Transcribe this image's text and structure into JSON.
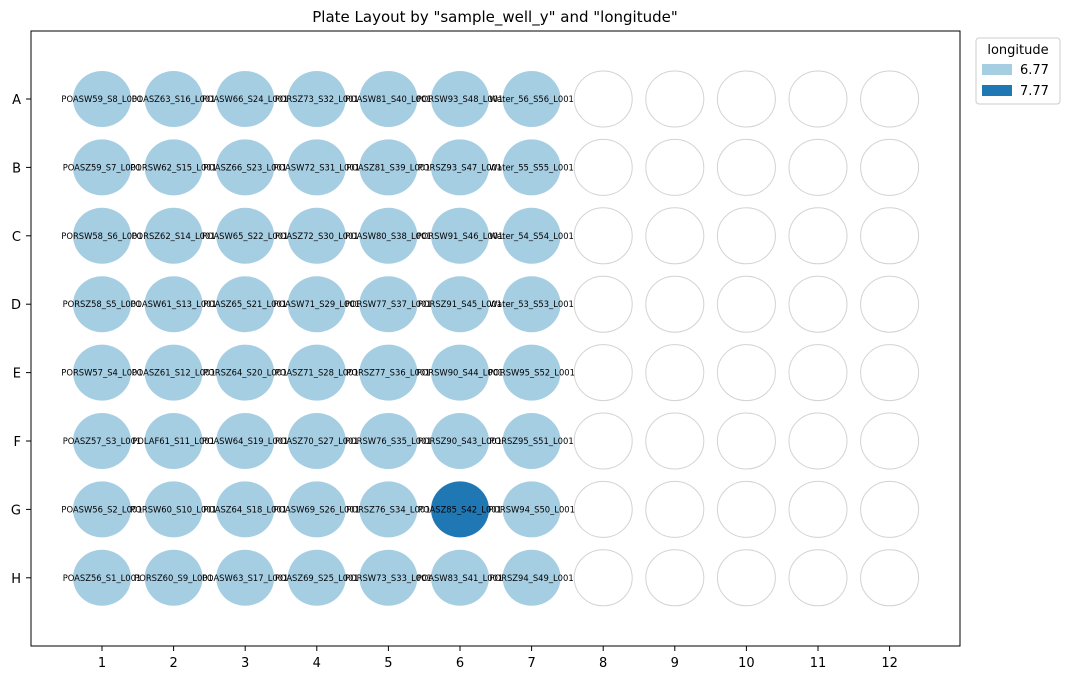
{
  "chart_data": {
    "type": "plate-layout",
    "title": "Plate Layout by \"sample_well_y\" and \"longitude\"",
    "rows": [
      "A",
      "B",
      "C",
      "D",
      "E",
      "F",
      "G",
      "H"
    ],
    "columns": [
      "1",
      "2",
      "3",
      "4",
      "5",
      "6",
      "7",
      "8",
      "9",
      "10",
      "11",
      "12"
    ],
    "legend": {
      "title": "longitude",
      "placement": "outside top-right",
      "entries": [
        {
          "label": "6.77",
          "color": "#a6cee3"
        },
        {
          "label": "7.77",
          "color": "#1f78b4"
        }
      ]
    },
    "empty_well_color": "#d3d3d3",
    "wells": [
      {
        "row": "A",
        "col": 1,
        "label": "POASW59_S8_L001",
        "longitude": "6.77"
      },
      {
        "row": "A",
        "col": 2,
        "label": "POASZ63_S16_L001",
        "longitude": "6.77"
      },
      {
        "row": "A",
        "col": 3,
        "label": "POASW66_S24_L001",
        "longitude": "6.77"
      },
      {
        "row": "A",
        "col": 4,
        "label": "PORSZ73_S32_L001",
        "longitude": "6.77"
      },
      {
        "row": "A",
        "col": 5,
        "label": "POASW81_S40_L001",
        "longitude": "6.77"
      },
      {
        "row": "A",
        "col": 6,
        "label": "PORSW93_S48_L001",
        "longitude": "6.77"
      },
      {
        "row": "A",
        "col": 7,
        "label": "Water_56_S56_L001",
        "longitude": "6.77"
      },
      {
        "row": "B",
        "col": 1,
        "label": "POASZ59_S7_L001",
        "longitude": "6.77"
      },
      {
        "row": "B",
        "col": 2,
        "label": "PORSW62_S15_L001",
        "longitude": "6.77"
      },
      {
        "row": "B",
        "col": 3,
        "label": "POASZ66_S23_L001",
        "longitude": "6.77"
      },
      {
        "row": "B",
        "col": 4,
        "label": "POASW72_S31_L001",
        "longitude": "6.77"
      },
      {
        "row": "B",
        "col": 5,
        "label": "POASZ81_S39_L001",
        "longitude": "6.77"
      },
      {
        "row": "B",
        "col": 6,
        "label": "PORSZ93_S47_L001",
        "longitude": "6.77"
      },
      {
        "row": "B",
        "col": 7,
        "label": "Water_55_S55_L001",
        "longitude": "6.77"
      },
      {
        "row": "C",
        "col": 1,
        "label": "PORSW58_S6_L001",
        "longitude": "6.77"
      },
      {
        "row": "C",
        "col": 2,
        "label": "PORSZ62_S14_L001",
        "longitude": "6.77"
      },
      {
        "row": "C",
        "col": 3,
        "label": "POASW65_S22_L001",
        "longitude": "6.77"
      },
      {
        "row": "C",
        "col": 4,
        "label": "POASZ72_S30_L001",
        "longitude": "6.77"
      },
      {
        "row": "C",
        "col": 5,
        "label": "POASW80_S38_L001",
        "longitude": "6.77"
      },
      {
        "row": "C",
        "col": 6,
        "label": "PORSW91_S46_L001",
        "longitude": "6.77"
      },
      {
        "row": "C",
        "col": 7,
        "label": "Water_54_S54_L001",
        "longitude": "6.77"
      },
      {
        "row": "D",
        "col": 1,
        "label": "PORSZ58_S5_L001",
        "longitude": "6.77"
      },
      {
        "row": "D",
        "col": 2,
        "label": "POASW61_S13_L001",
        "longitude": "6.77"
      },
      {
        "row": "D",
        "col": 3,
        "label": "POASZ65_S21_L001",
        "longitude": "6.77"
      },
      {
        "row": "D",
        "col": 4,
        "label": "POASW71_S29_L001",
        "longitude": "6.77"
      },
      {
        "row": "D",
        "col": 5,
        "label": "PORSW77_S37_L001",
        "longitude": "6.77"
      },
      {
        "row": "D",
        "col": 6,
        "label": "PORSZ91_S45_L001",
        "longitude": "6.77"
      },
      {
        "row": "D",
        "col": 7,
        "label": "Water_53_S53_L001",
        "longitude": "6.77"
      },
      {
        "row": "E",
        "col": 1,
        "label": "PORSW57_S4_L001",
        "longitude": "6.77"
      },
      {
        "row": "E",
        "col": 2,
        "label": "POASZ61_S12_L001",
        "longitude": "6.77"
      },
      {
        "row": "E",
        "col": 3,
        "label": "PORSZ64_S20_L001",
        "longitude": "6.77"
      },
      {
        "row": "E",
        "col": 4,
        "label": "POASZ71_S28_L001",
        "longitude": "6.77"
      },
      {
        "row": "E",
        "col": 5,
        "label": "PORSZ77_S36_L001",
        "longitude": "6.77"
      },
      {
        "row": "E",
        "col": 6,
        "label": "PORSW90_S44_L001",
        "longitude": "6.77"
      },
      {
        "row": "E",
        "col": 7,
        "label": "PORSW95_S52_L001",
        "longitude": "6.77"
      },
      {
        "row": "F",
        "col": 1,
        "label": "POASZ57_S3_L001",
        "longitude": "6.77"
      },
      {
        "row": "F",
        "col": 2,
        "label": "POLAF61_S11_L001",
        "longitude": "6.77"
      },
      {
        "row": "F",
        "col": 3,
        "label": "POASW64_S19_L001",
        "longitude": "6.77"
      },
      {
        "row": "F",
        "col": 4,
        "label": "POASZ70_S27_L001",
        "longitude": "6.77"
      },
      {
        "row": "F",
        "col": 5,
        "label": "PORSW76_S35_L001",
        "longitude": "6.77"
      },
      {
        "row": "F",
        "col": 6,
        "label": "PORSZ90_S43_L001",
        "longitude": "6.77"
      },
      {
        "row": "F",
        "col": 7,
        "label": "PORSZ95_S51_L001",
        "longitude": "6.77"
      },
      {
        "row": "G",
        "col": 1,
        "label": "POASW56_S2_L001",
        "longitude": "6.77"
      },
      {
        "row": "G",
        "col": 2,
        "label": "PORSW60_S10_L001",
        "longitude": "6.77"
      },
      {
        "row": "G",
        "col": 3,
        "label": "POASZ64_S18_L001",
        "longitude": "6.77"
      },
      {
        "row": "G",
        "col": 4,
        "label": "POASW69_S26_L001",
        "longitude": "6.77"
      },
      {
        "row": "G",
        "col": 5,
        "label": "PORSZ76_S34_L001",
        "longitude": "6.77"
      },
      {
        "row": "G",
        "col": 6,
        "label": "POASZ85_S42_L001",
        "longitude": "7.77"
      },
      {
        "row": "G",
        "col": 7,
        "label": "PORSW94_S50_L001",
        "longitude": "6.77"
      },
      {
        "row": "H",
        "col": 1,
        "label": "POASZ56_S1_L001",
        "longitude": "6.77"
      },
      {
        "row": "H",
        "col": 2,
        "label": "PORSZ60_S9_L001",
        "longitude": "6.77"
      },
      {
        "row": "H",
        "col": 3,
        "label": "POASW63_S17_L001",
        "longitude": "6.77"
      },
      {
        "row": "H",
        "col": 4,
        "label": "POASZ69_S25_L001",
        "longitude": "6.77"
      },
      {
        "row": "H",
        "col": 5,
        "label": "PORSW73_S33_L001",
        "longitude": "6.77"
      },
      {
        "row": "H",
        "col": 6,
        "label": "POASW83_S41_L001",
        "longitude": "6.77"
      },
      {
        "row": "H",
        "col": 7,
        "label": "PORSZ94_S49_L001",
        "longitude": "6.77"
      }
    ]
  }
}
